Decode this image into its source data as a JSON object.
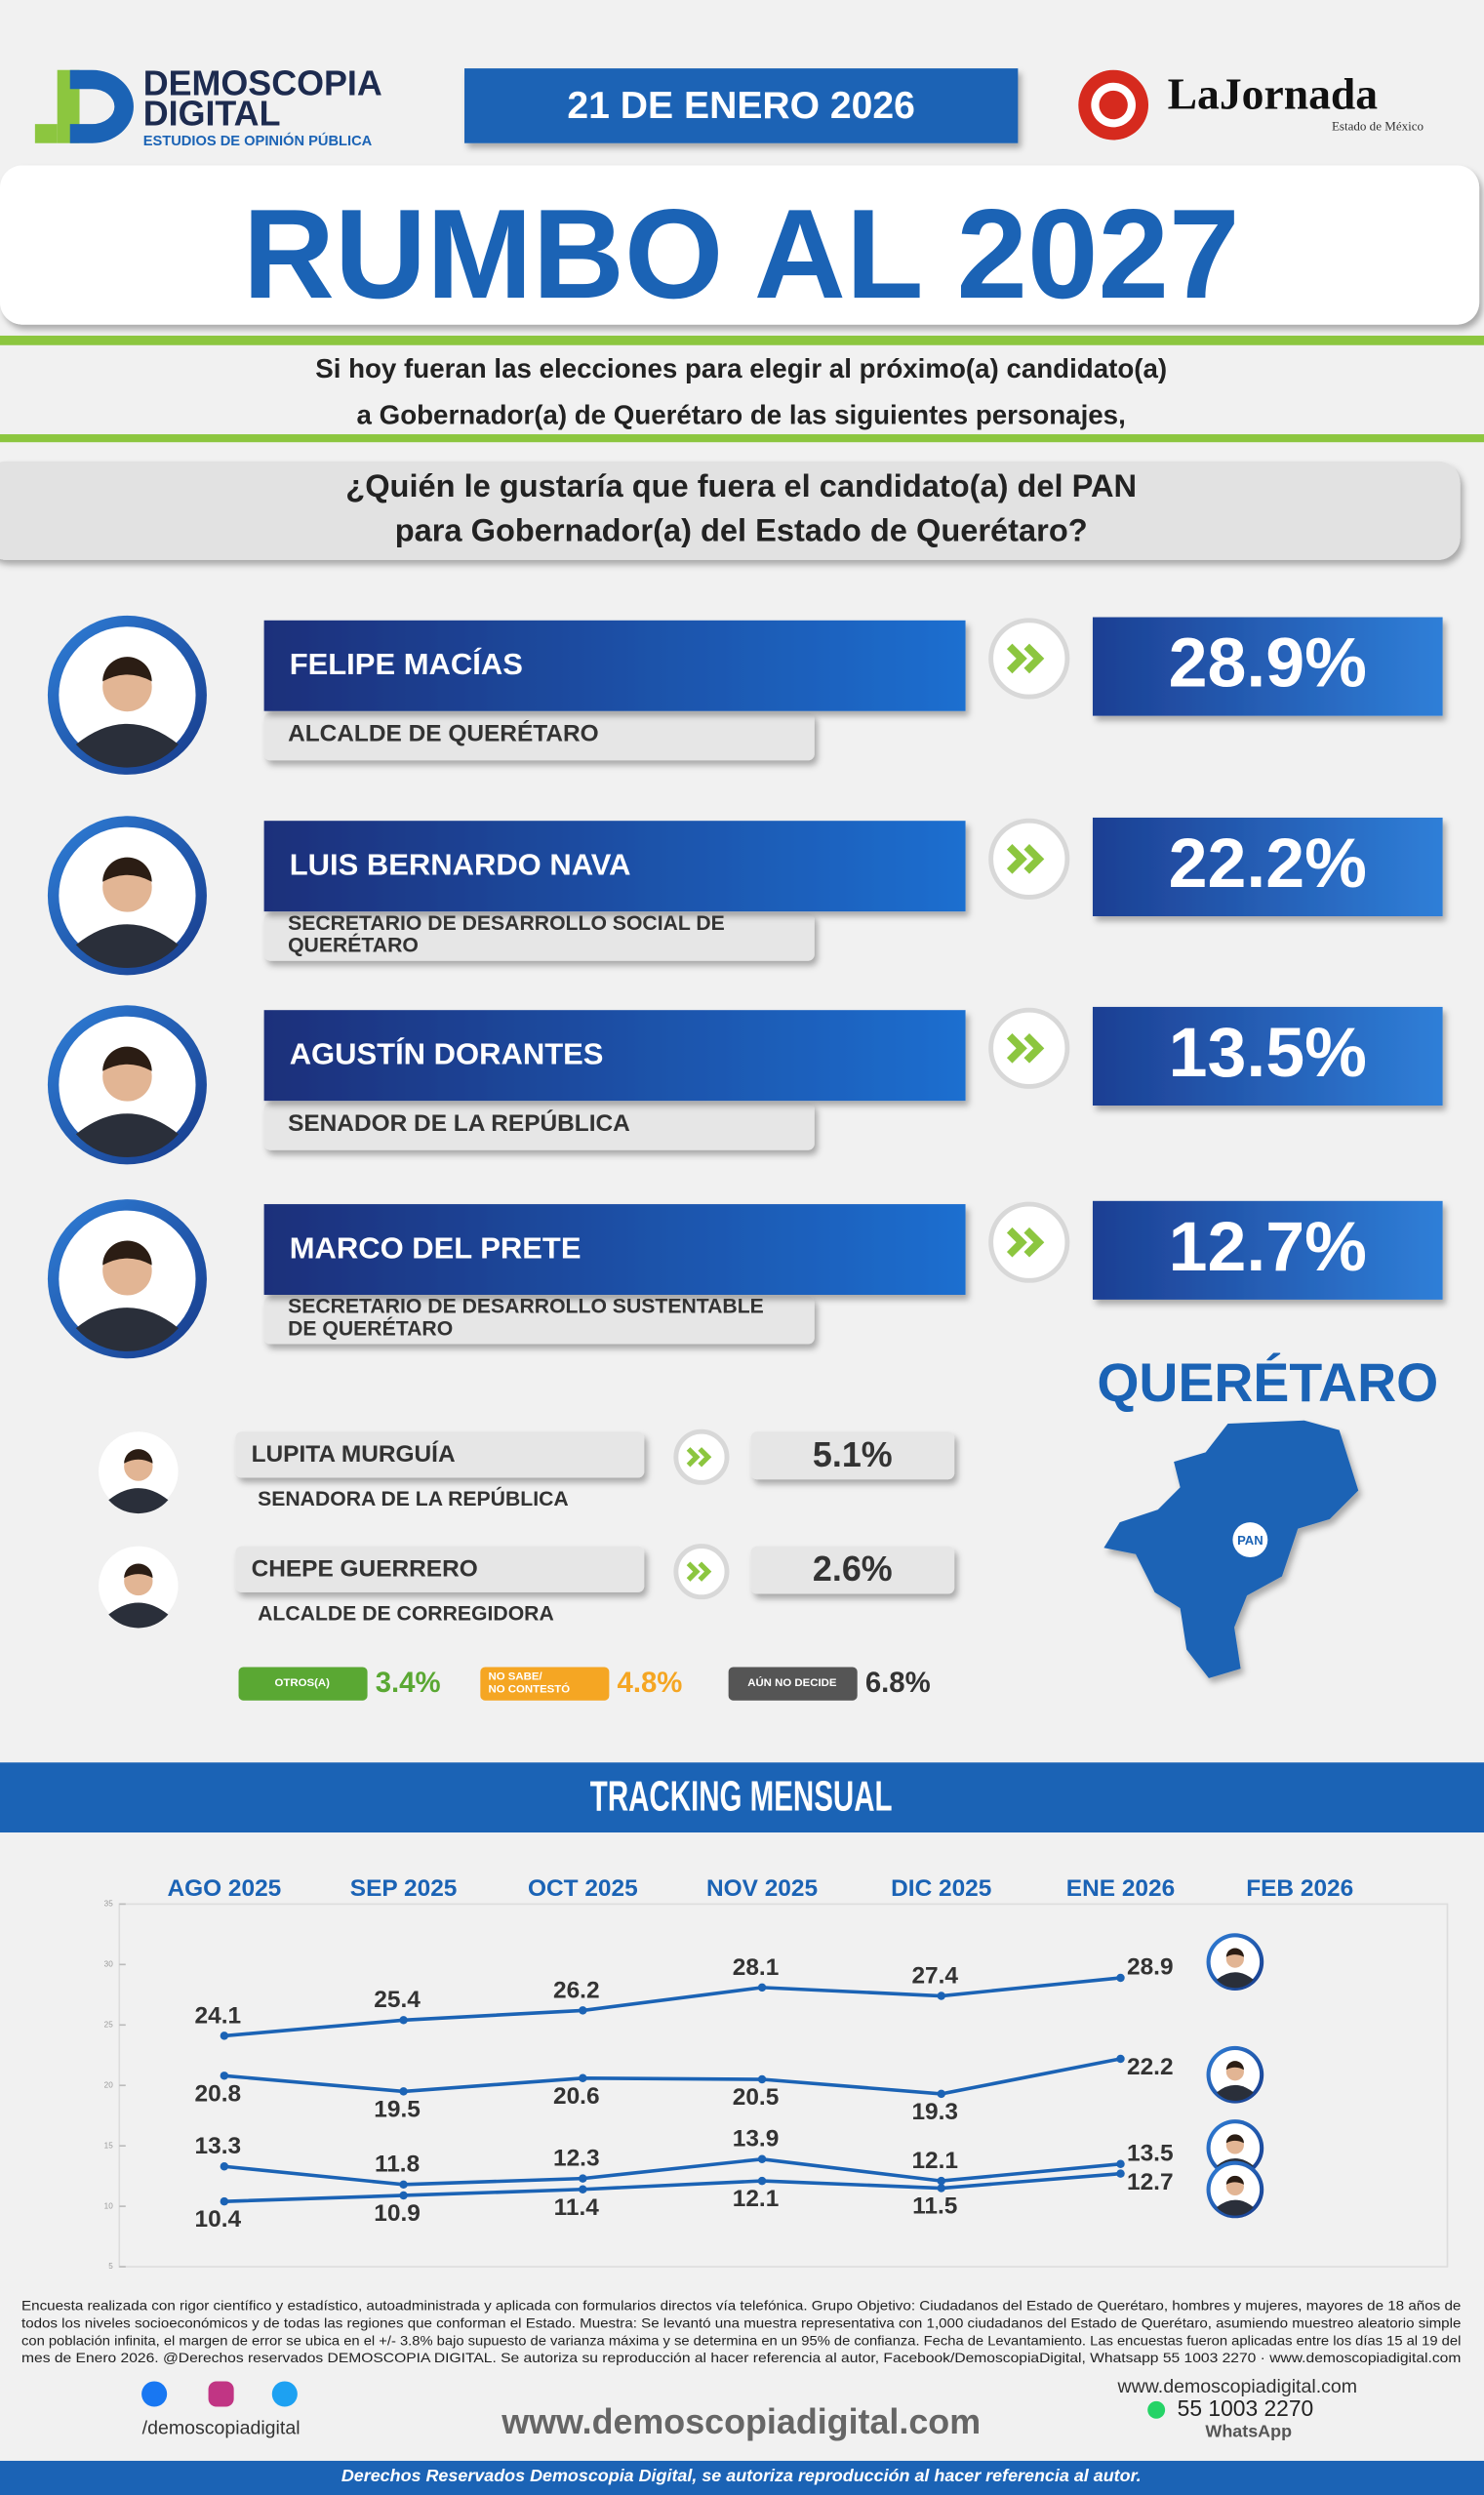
{
  "header": {
    "brand": "DEMOSCOPIA",
    "brand2": "DIGITAL",
    "tagline": "ESTUDIOS DE OPINIÓN PÚBLICA",
    "date": "21 DE ENERO 2026",
    "partner": "LaJornada",
    "partner_sub": "Estado de México",
    "title": "RUMBO AL 2027",
    "intro": [
      "Si hoy fueran las elecciones para elegir al próximo(a) candidato(a)",
      "a Gobernador(a) de Querétaro de las siguientes personajes,"
    ],
    "question": [
      "¿Quién le gustaría que fuera el candidato(a) del PAN",
      "para Gobernador(a) del Estado de Querétaro?"
    ]
  },
  "candidates": [
    {
      "name": "FELIPE MACÍAS",
      "role": [
        "ALCALDE DE QUERÉTARO"
      ],
      "value": "28.9%"
    },
    {
      "name": "LUIS BERNARDO NAVA",
      "role": [
        "SECRETARIO DE DESARROLLO SOCIAL DE",
        "QUERÉTARO"
      ],
      "value": "22.2%"
    },
    {
      "name": "AGUSTÍN DORANTES",
      "role": [
        "SENADOR DE LA REPÚBLICA"
      ],
      "value": "13.5%"
    },
    {
      "name": "MARCO DEL PRETE",
      "role": [
        "SECRETARIO DE DESARROLLO SUSTENTABLE",
        "DE QUERÉTARO"
      ],
      "value": "12.7%"
    }
  ],
  "minor_candidates": [
    {
      "name": "LUPITA MURGUÍA",
      "role": "SENADORA DE LA REPÚBLICA",
      "value": "5.1%"
    },
    {
      "name": "CHEPE GUERRERO",
      "role": "ALCALDE DE CORREGIDORA",
      "value": "2.6%"
    }
  ],
  "others": [
    {
      "label": [
        "OTROS(A)"
      ],
      "value": "3.4%",
      "color": "#5aa833"
    },
    {
      "label": [
        "NO SABE/",
        "NO CONTESTÓ"
      ],
      "value": "4.8%",
      "color": "#f5a623"
    },
    {
      "label": [
        "AÚN NO DECIDE"
      ],
      "value": "6.8%",
      "color": "#555555"
    }
  ],
  "map": {
    "state": "QUERÉTARO",
    "badge": "PAN"
  },
  "chart_data": {
    "type": "line",
    "title": "TRACKING MENSUAL",
    "categories": [
      "AGO 2025",
      "SEP 2025",
      "OCT 2025",
      "NOV 2025",
      "DIC 2025",
      "ENE 2026",
      "FEB 2026"
    ],
    "ylim": [
      5,
      35
    ],
    "yticks": [
      5,
      10,
      15,
      20,
      25,
      30,
      35
    ],
    "series": [
      {
        "color": "#1b63b5",
        "values": [
          24.1,
          25.4,
          26.2,
          28.1,
          27.4,
          28.9,
          null
        ]
      },
      {
        "color": "#1b63b5",
        "values": [
          20.8,
          19.5,
          20.6,
          20.5,
          19.3,
          22.2,
          null
        ]
      },
      {
        "color": "#1b63b5",
        "values": [
          13.3,
          11.8,
          12.3,
          13.9,
          12.1,
          13.5,
          null
        ]
      },
      {
        "color": "#1b63b5",
        "values": [
          10.4,
          10.9,
          11.4,
          12.1,
          11.5,
          12.7,
          null
        ]
      }
    ]
  },
  "footer": {
    "note": [
      "Encuesta realizada con rigor científico y estadístico, autoadministrada y aplicada con formularios directos vía telefónica. Grupo Objetivo: Ciudadanos del Estado de Querétaro, hombres y mujeres, mayores de 18 años de",
      "todos los niveles socioeconómicos y de todas las regiones que conforman el Estado. Muestra: Se levantó una muestra representativa con 1,000 ciudadanos del Estado de Querétaro, asumiendo muestreo aleatorio simple",
      "con población infinita, el margen de error se ubica en el +/- 3.8% bajo supuesto de varianza máxima y se determina en un 95% de confianza. Fecha de Levantamiento. Las encuestas fueron aplicadas entre los días 15 al 19 del",
      "mes de Enero 2026. @Derechos reservados DEMOSCOPIA DIGITAL. Se autoriza su reproducción al hacer referencia al autor, Facebook/DemoscopiaDigital, Whatsapp 55 1003 2270 · www.demoscopiadigital.com"
    ],
    "social": "/demoscopiadigital",
    "website": "www.demoscopiadigital.com",
    "website_small": "www.demoscopiadigital.com",
    "phone": "55 1003 2270",
    "phone_label": "WhatsApp",
    "rights": "Derechos Reservados Demoscopia Digital, se autoriza reproducción al hacer referencia al autor."
  }
}
